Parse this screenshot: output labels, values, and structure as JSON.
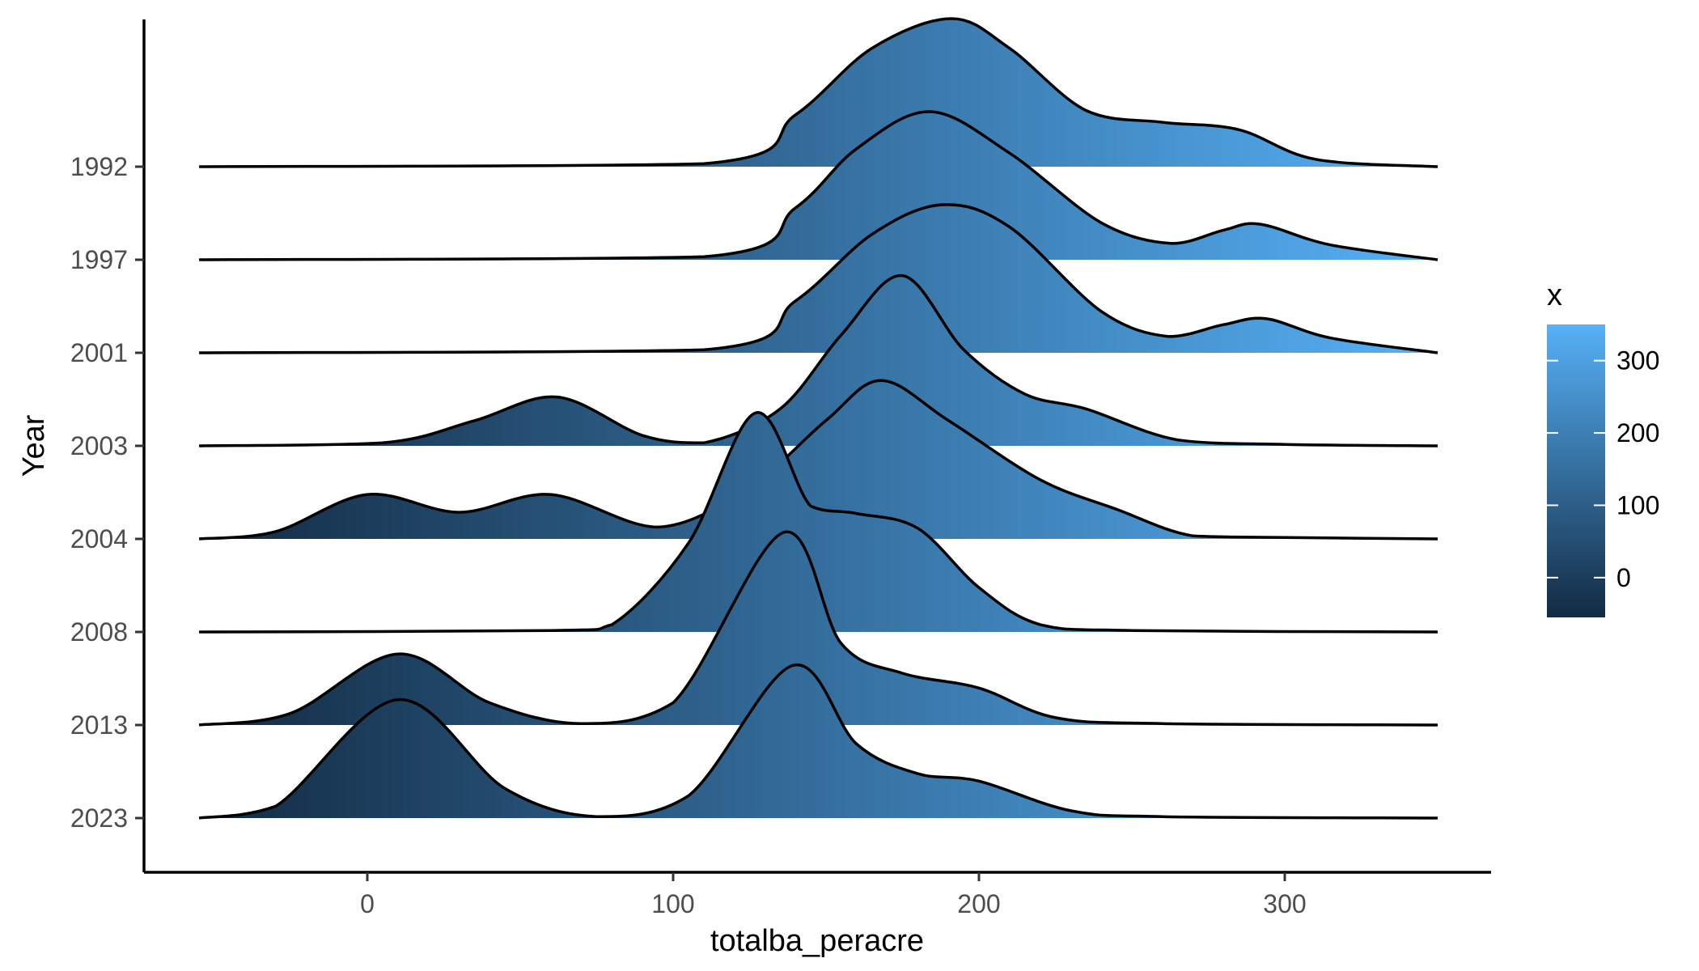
{
  "chart_data": {
    "type": "ridgeline",
    "title": "",
    "xlabel": "totalba_peracre",
    "ylabel": "Year",
    "xlim": [
      -55,
      350
    ],
    "x_ticks": [
      0,
      100,
      200,
      300
    ],
    "grid": false,
    "legend": {
      "title": "x",
      "placement": "right",
      "type": "colorbar",
      "range": [
        -55,
        350
      ],
      "ticks": [
        0,
        100,
        200,
        300
      ],
      "color_low": "#132B43",
      "color_high": "#56B1F7"
    },
    "categories": [
      "1992",
      "1997",
      "2001",
      "2003",
      "2004",
      "2008",
      "2013",
      "2023"
    ],
    "series": [
      {
        "year": "1992",
        "x": [
          -55,
          110,
          140,
          165,
          191,
          210,
          235,
          260,
          285,
          310,
          350
        ],
        "y": [
          0,
          0.02,
          0.35,
          0.8,
          1.0,
          0.8,
          0.38,
          0.3,
          0.25,
          0.05,
          0
        ]
      },
      {
        "year": "1997",
        "x": [
          -55,
          110,
          140,
          160,
          184,
          210,
          240,
          263,
          280,
          292,
          315,
          350
        ],
        "y": [
          0,
          0.02,
          0.35,
          0.75,
          1.0,
          0.72,
          0.25,
          0.11,
          0.2,
          0.24,
          0.1,
          0
        ]
      },
      {
        "year": "2001",
        "x": [
          -55,
          110,
          140,
          165,
          188,
          210,
          240,
          262,
          280,
          294,
          315,
          350
        ],
        "y": [
          0,
          0.02,
          0.35,
          0.8,
          1.0,
          0.85,
          0.28,
          0.11,
          0.19,
          0.23,
          0.1,
          0
        ]
      },
      {
        "year": "2003",
        "x": [
          -55,
          5,
          35,
          62,
          90,
          110,
          135,
          155,
          175,
          195,
          215,
          235,
          265,
          300,
          350
        ],
        "y": [
          0,
          0.02,
          0.17,
          0.33,
          0.07,
          0.02,
          0.25,
          0.75,
          1.15,
          0.65,
          0.35,
          0.25,
          0.04,
          0.01,
          0
        ]
      },
      {
        "year": "2004",
        "x": [
          -55,
          -30,
          0,
          30,
          60,
          95,
          125,
          150,
          168,
          190,
          220,
          245,
          270,
          300,
          350
        ],
        "y": [
          0,
          0.05,
          0.3,
          0.18,
          0.3,
          0.08,
          0.35,
          0.8,
          1.07,
          0.8,
          0.4,
          0.2,
          0.02,
          0.01,
          0
        ]
      },
      {
        "year": "2008",
        "x": [
          -55,
          60,
          80,
          105,
          127,
          145,
          160,
          180,
          200,
          220,
          250,
          350
        ],
        "y": [
          0,
          0.01,
          0.05,
          0.6,
          1.48,
          0.85,
          0.8,
          0.7,
          0.3,
          0.05,
          0.01,
          0
        ]
      },
      {
        "year": "2013",
        "x": [
          -55,
          -25,
          10,
          40,
          70,
          100,
          136,
          155,
          175,
          200,
          225,
          260,
          350
        ],
        "y": [
          0,
          0.08,
          0.48,
          0.15,
          0.01,
          0.15,
          1.3,
          0.55,
          0.35,
          0.25,
          0.05,
          0.01,
          0
        ]
      },
      {
        "year": "2023",
        "x": [
          -55,
          -30,
          10,
          45,
          75,
          105,
          139,
          160,
          180,
          200,
          230,
          260,
          350
        ],
        "y": [
          0,
          0.08,
          0.8,
          0.2,
          0.01,
          0.15,
          1.03,
          0.5,
          0.3,
          0.25,
          0.05,
          0.01,
          0
        ]
      }
    ]
  }
}
